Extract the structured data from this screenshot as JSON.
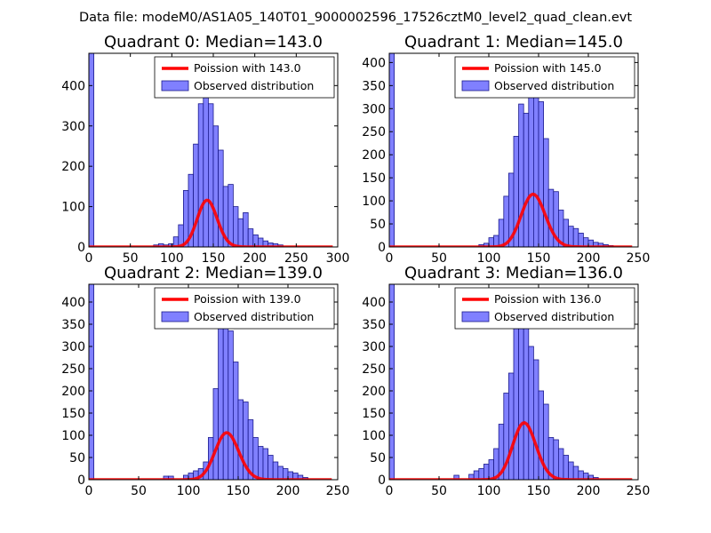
{
  "suptitle": "Data file: modeM0/AS1A05_140T01_9000002596_17526cztM0_level2_quad_clean.evt",
  "colors": {
    "poisson": "#ff0000",
    "bar_fill": "#8080ff",
    "bar_edge": "#1a1a8c"
  },
  "chart_data": [
    {
      "type": "bar",
      "title": "Quadrant 0: Median=143.0",
      "xlim": [
        0,
        300
      ],
      "ylim": [
        0,
        480
      ],
      "xticks": [
        0,
        50,
        100,
        150,
        200,
        250,
        300
      ],
      "yticks": [
        0,
        100,
        200,
        300,
        400
      ],
      "bin_width": 6,
      "bins": [
        [
          0,
          480
        ],
        [
          78,
          5
        ],
        [
          84,
          8
        ],
        [
          90,
          5
        ],
        [
          96,
          8
        ],
        [
          102,
          25
        ],
        [
          108,
          55
        ],
        [
          114,
          140
        ],
        [
          120,
          180
        ],
        [
          126,
          255
        ],
        [
          132,
          355
        ],
        [
          138,
          370
        ],
        [
          144,
          355
        ],
        [
          150,
          300
        ],
        [
          156,
          240
        ],
        [
          162,
          150
        ],
        [
          168,
          155
        ],
        [
          174,
          100
        ],
        [
          180,
          70
        ],
        [
          186,
          85
        ],
        [
          192,
          45
        ],
        [
          198,
          30
        ],
        [
          204,
          22
        ],
        [
          210,
          15
        ],
        [
          216,
          10
        ],
        [
          222,
          8
        ],
        [
          228,
          5
        ]
      ],
      "poisson_mean": 143.0,
      "legend": {
        "poisson": "Poission with 143.0",
        "observed": "Observed distribution"
      }
    },
    {
      "type": "bar",
      "title": "Quadrant 1: Median=145.0",
      "xlim": [
        0,
        250
      ],
      "ylim": [
        0,
        420
      ],
      "xticks": [
        0,
        50,
        100,
        150,
        200,
        250
      ],
      "yticks": [
        0,
        50,
        100,
        150,
        200,
        250,
        300,
        350,
        400
      ],
      "bin_width": 5,
      "bins": [
        [
          0,
          420
        ],
        [
          90,
          5
        ],
        [
          95,
          8
        ],
        [
          100,
          20
        ],
        [
          105,
          25
        ],
        [
          110,
          60
        ],
        [
          115,
          110
        ],
        [
          120,
          160
        ],
        [
          125,
          240
        ],
        [
          130,
          310
        ],
        [
          135,
          290
        ],
        [
          140,
          355
        ],
        [
          145,
          340
        ],
        [
          150,
          315
        ],
        [
          155,
          235
        ],
        [
          160,
          125
        ],
        [
          165,
          120
        ],
        [
          170,
          80
        ],
        [
          175,
          60
        ],
        [
          180,
          45
        ],
        [
          185,
          40
        ],
        [
          190,
          30
        ],
        [
          195,
          20
        ],
        [
          200,
          15
        ],
        [
          205,
          10
        ],
        [
          210,
          8
        ],
        [
          215,
          5
        ],
        [
          220,
          3
        ]
      ],
      "poisson_mean": 145.0,
      "legend": {
        "poisson": "Poission with 145.0",
        "observed": "Observed distribution"
      }
    },
    {
      "type": "bar",
      "title": "Quadrant 2: Median=139.0",
      "xlim": [
        0,
        250
      ],
      "ylim": [
        0,
        440
      ],
      "xticks": [
        0,
        50,
        100,
        150,
        200,
        250
      ],
      "yticks": [
        0,
        50,
        100,
        150,
        200,
        250,
        300,
        350,
        400
      ],
      "bin_width": 5,
      "bins": [
        [
          0,
          440
        ],
        [
          75,
          8
        ],
        [
          80,
          8
        ],
        [
          95,
          10
        ],
        [
          100,
          15
        ],
        [
          105,
          20
        ],
        [
          110,
          25
        ],
        [
          115,
          40
        ],
        [
          120,
          95
        ],
        [
          125,
          205
        ],
        [
          130,
          355
        ],
        [
          135,
          380
        ],
        [
          140,
          335
        ],
        [
          145,
          265
        ],
        [
          150,
          180
        ],
        [
          155,
          175
        ],
        [
          160,
          135
        ],
        [
          165,
          95
        ],
        [
          170,
          75
        ],
        [
          175,
          70
        ],
        [
          180,
          55
        ],
        [
          185,
          40
        ],
        [
          190,
          30
        ],
        [
          195,
          25
        ],
        [
          200,
          18
        ],
        [
          205,
          15
        ],
        [
          210,
          10
        ],
        [
          215,
          5
        ]
      ],
      "poisson_mean": 139.0,
      "legend": {
        "poisson": "Poission with 139.0",
        "observed": "Observed distribution"
      }
    },
    {
      "type": "bar",
      "title": "Quadrant 3: Median=136.0",
      "xlim": [
        0,
        250
      ],
      "ylim": [
        0,
        440
      ],
      "xticks": [
        0,
        50,
        100,
        150,
        200,
        250
      ],
      "yticks": [
        0,
        50,
        100,
        150,
        200,
        250,
        300,
        350,
        400
      ],
      "bin_width": 5,
      "bins": [
        [
          0,
          440
        ],
        [
          65,
          10
        ],
        [
          80,
          12
        ],
        [
          85,
          20
        ],
        [
          90,
          25
        ],
        [
          95,
          35
        ],
        [
          100,
          45
        ],
        [
          105,
          70
        ],
        [
          110,
          125
        ],
        [
          115,
          195
        ],
        [
          120,
          240
        ],
        [
          125,
          375
        ],
        [
          130,
          395
        ],
        [
          135,
          390
        ],
        [
          140,
          300
        ],
        [
          145,
          270
        ],
        [
          150,
          200
        ],
        [
          155,
          170
        ],
        [
          160,
          95
        ],
        [
          165,
          90
        ],
        [
          170,
          70
        ],
        [
          175,
          55
        ],
        [
          180,
          40
        ],
        [
          185,
          30
        ],
        [
          190,
          20
        ],
        [
          195,
          15
        ],
        [
          200,
          10
        ],
        [
          205,
          5
        ]
      ],
      "poisson_mean": 136.0,
      "legend": {
        "poisson": "Poission with 136.0",
        "observed": "Observed distribution"
      }
    }
  ]
}
